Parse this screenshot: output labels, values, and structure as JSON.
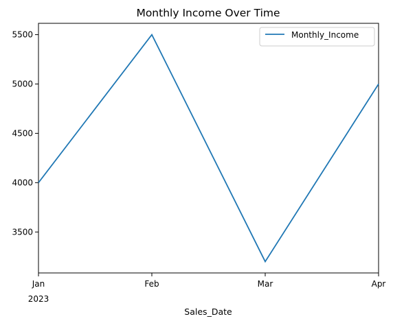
{
  "chart_data": {
    "type": "line",
    "title": "Monthly Income Over Time",
    "xlabel": "Sales_Date",
    "ylabel": "",
    "x": [
      "2023-01",
      "2023-02",
      "2023-03",
      "2023-04"
    ],
    "x_tick_labels": [
      "Jan",
      "Feb",
      "Mar",
      "Apr"
    ],
    "x_tick_sublabel": "2023",
    "series": [
      {
        "name": "Monthly_Income",
        "values": [
          4000,
          5500,
          3200,
          5000
        ],
        "color": "#1f77b4"
      }
    ],
    "ylim": [
      3085,
      5615
    ],
    "y_ticks": [
      3500,
      4000,
      4500,
      5000,
      5500
    ],
    "legend_position": "upper right",
    "grid": false
  }
}
